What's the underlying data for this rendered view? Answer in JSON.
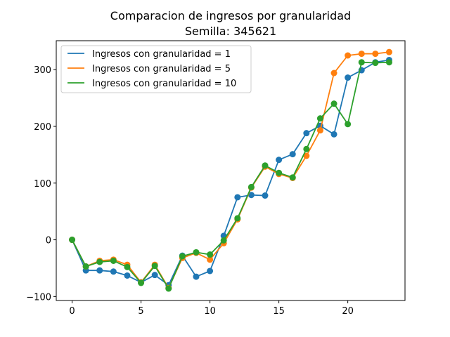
{
  "chart_data": {
    "type": "line",
    "title": "Comparacion de ingresos por granularidad",
    "subtitle": "Semilla: 345621",
    "xlabel": "",
    "ylabel": "",
    "xlim": [
      -1.15,
      24.15
    ],
    "ylim": [
      -107,
      351
    ],
    "xticks": [
      0,
      5,
      10,
      15,
      20
    ],
    "yticks": [
      -100,
      0,
      100,
      200,
      300
    ],
    "grid": false,
    "legend_position": "upper-left",
    "markers": true,
    "series": [
      {
        "name": "Ingresos con granularidad = 1",
        "color": "#1f77b4",
        "x": [
          0,
          1,
          2,
          3,
          4,
          5,
          6,
          7,
          8,
          9,
          10,
          11,
          12,
          13,
          14,
          15,
          16,
          17,
          18,
          19,
          20,
          21,
          22,
          23
        ],
        "y": [
          0,
          -54,
          -54,
          -56,
          -63,
          -75,
          -62,
          -80,
          -28,
          -65,
          -55,
          7,
          75,
          79,
          78,
          141,
          151,
          188,
          201,
          186,
          286,
          299,
          313,
          317
        ]
      },
      {
        "name": "Ingresos con granularidad = 5",
        "color": "#ff7f0e",
        "x": [
          0,
          1,
          2,
          3,
          4,
          5,
          6,
          7,
          8,
          9,
          10,
          11,
          12,
          13,
          14,
          15,
          16,
          17,
          18,
          19,
          20,
          21,
          22,
          23
        ],
        "y": [
          0,
          -47,
          -37,
          -35,
          -44,
          -75,
          -44,
          -85,
          -32,
          -23,
          -35,
          -6,
          36,
          92,
          129,
          116,
          109,
          148,
          193,
          294,
          325,
          328,
          328,
          331
        ]
      },
      {
        "name": "Ingresos con granularidad = 10",
        "color": "#2ca02c",
        "x": [
          0,
          1,
          2,
          3,
          4,
          5,
          6,
          7,
          8,
          9,
          10,
          11,
          12,
          13,
          14,
          15,
          16,
          17,
          18,
          19,
          20,
          21,
          22,
          23
        ],
        "y": [
          0,
          -47,
          -39,
          -37,
          -48,
          -76,
          -46,
          -86,
          -29,
          -22,
          -26,
          -1,
          38,
          93,
          131,
          118,
          110,
          160,
          214,
          240,
          204,
          313,
          312,
          313
        ]
      }
    ]
  }
}
